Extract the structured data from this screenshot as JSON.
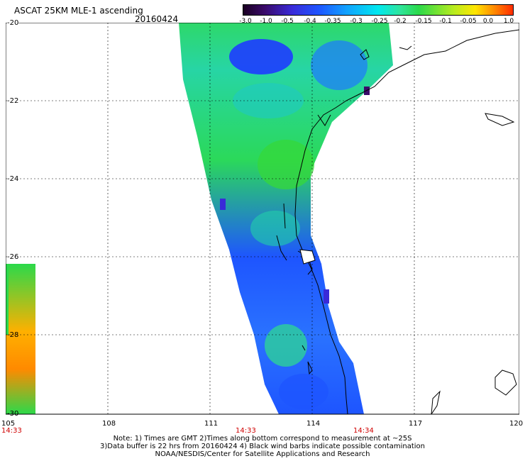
{
  "header": {
    "title": "ASCAT 25KM MLE-1 ascending",
    "date": "20160424"
  },
  "colorbar": {
    "labels": [
      "-3.0",
      "-1.0",
      "-0.5",
      "-0.4",
      "-0.35",
      "-0.3",
      "-0.25",
      "-0.2",
      "-0.15",
      "-0.1",
      "-0.05",
      "0.0",
      "1.0"
    ],
    "colors": [
      "#1a0022",
      "#3a0a6a",
      "#3a2ad8",
      "#1e55ff",
      "#12a0ff",
      "#00e8ef",
      "#2fe59e",
      "#2bd94a",
      "#b7ec1f",
      "#ffe600",
      "#ff8a00",
      "#ff2c00"
    ]
  },
  "axes": {
    "lat_labels": [
      "-20",
      "-22",
      "-24",
      "-26",
      "-28",
      "-30"
    ],
    "lon_labels": [
      "105",
      "108",
      "111",
      "114",
      "117",
      "120"
    ],
    "time_labels": [
      "14:33",
      "14:33",
      "14:34"
    ],
    "time_color": "#d00000"
  },
  "notes": [
    "Note: 1) Times are GMT 2)Times along bottom correspond to measurement at ~25S",
    "3)Data buffer is 22 hrs from 20160424 4) Black wind barbs indicate possible contamination",
    "NOAA/NESDIS/Center for Satellite Applications and Research"
  ]
}
